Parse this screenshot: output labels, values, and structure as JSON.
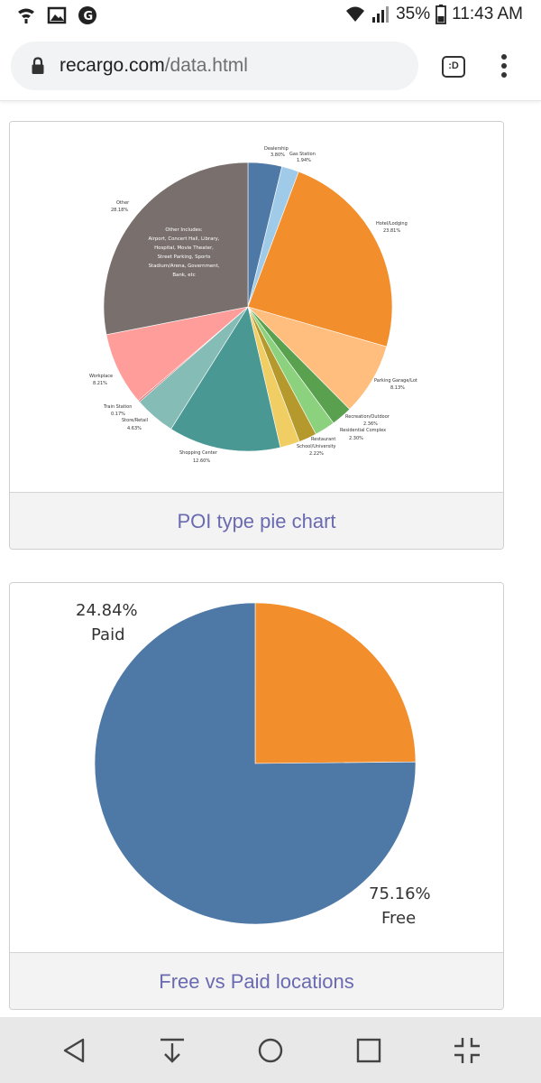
{
  "status_bar": {
    "battery": "35%",
    "time": "11:43 AM",
    "icons": [
      "wifi-call-icon",
      "image-icon",
      "notification-icon",
      "wifi-icon",
      "signal-icon",
      "battery-icon"
    ]
  },
  "browser": {
    "url_domain": "recargo.com",
    "url_path": "/data.html",
    "tab_switcher_label": ":D"
  },
  "cards": [
    {
      "caption": "POI type pie chart",
      "chart_data": {
        "type": "pie",
        "slices": [
          {
            "label": "Dealership",
            "value": 3.8,
            "color": "#4e79a7"
          },
          {
            "label": "Gas Station",
            "value": 1.94,
            "color": "#a0cbe8"
          },
          {
            "label": "Hotel/Lodging",
            "value": 23.81,
            "color": "#f28e2b"
          },
          {
            "label": "Parking Garage/Lot",
            "value": 8.13,
            "color": "#ffbe7d"
          },
          {
            "label": "Recreation/Outdoor",
            "value": 2.36,
            "color": "#59a14f"
          },
          {
            "label": "Residential Complex",
            "value": 2.3,
            "color": "#8cd17d"
          },
          {
            "label": "Restaurant",
            "value": 2.0,
            "color": "#b6992d"
          },
          {
            "label": "School/University",
            "value": 2.22,
            "color": "#f1ce63"
          },
          {
            "label": "Shopping Center",
            "value": 12.6,
            "color": "#499894"
          },
          {
            "label": "Store/Retail",
            "value": 4.63,
            "color": "#86bcb6"
          },
          {
            "label": "Train Station",
            "value": 0.17,
            "color": "#e15759"
          },
          {
            "label": "Workplace",
            "value": 8.21,
            "color": "#ff9d9a"
          },
          {
            "label": "Other",
            "value": 28.18,
            "color": "#79706e"
          }
        ],
        "labels_text": {
          "dealership": "Dealership",
          "dealership_pct": "3.80%",
          "gas": "Gas Station",
          "gas_pct": "1.94%",
          "hotel": "Hotel/Lodging",
          "hotel_pct": "23.81%",
          "parking": "Parking Garage/Lot",
          "parking_pct": "8.13%",
          "recreation": "Recreation/Outdoor",
          "recreation_pct": "2.36%",
          "residential": "Residential Complex",
          "residential_pct": "2.30%",
          "restaurant": "Restaurant",
          "school": "School/University",
          "school_pct": "2.22%",
          "shopping": "Shopping Center",
          "shopping_pct": "12.60%",
          "store": "Store/Retail",
          "store_pct": "4.63%",
          "train": "Train Station",
          "train_pct": "0.17%",
          "workplace": "Workplace",
          "workplace_pct": "8.21%",
          "other": "Other",
          "other_pct": "28.18%",
          "other_note": [
            "Other Includes:",
            "Airport, Concert Hall, Library,",
            "Hospital, Movie Theater,",
            "Street Parking, Sports",
            "Stadium/Arena, Government,",
            "Bank, etc"
          ]
        }
      }
    },
    {
      "caption": "Free vs Paid locations",
      "chart_data": {
        "type": "pie",
        "slices": [
          {
            "label": "Paid",
            "value": 24.84,
            "color": "#f28e2b"
          },
          {
            "label": "Free",
            "value": 75.16,
            "color": "#4e79a7"
          }
        ],
        "labels_text": {
          "paid_pct": "24.84%",
          "paid": "Paid",
          "free_pct": "75.16%",
          "free": "Free"
        }
      }
    }
  ]
}
